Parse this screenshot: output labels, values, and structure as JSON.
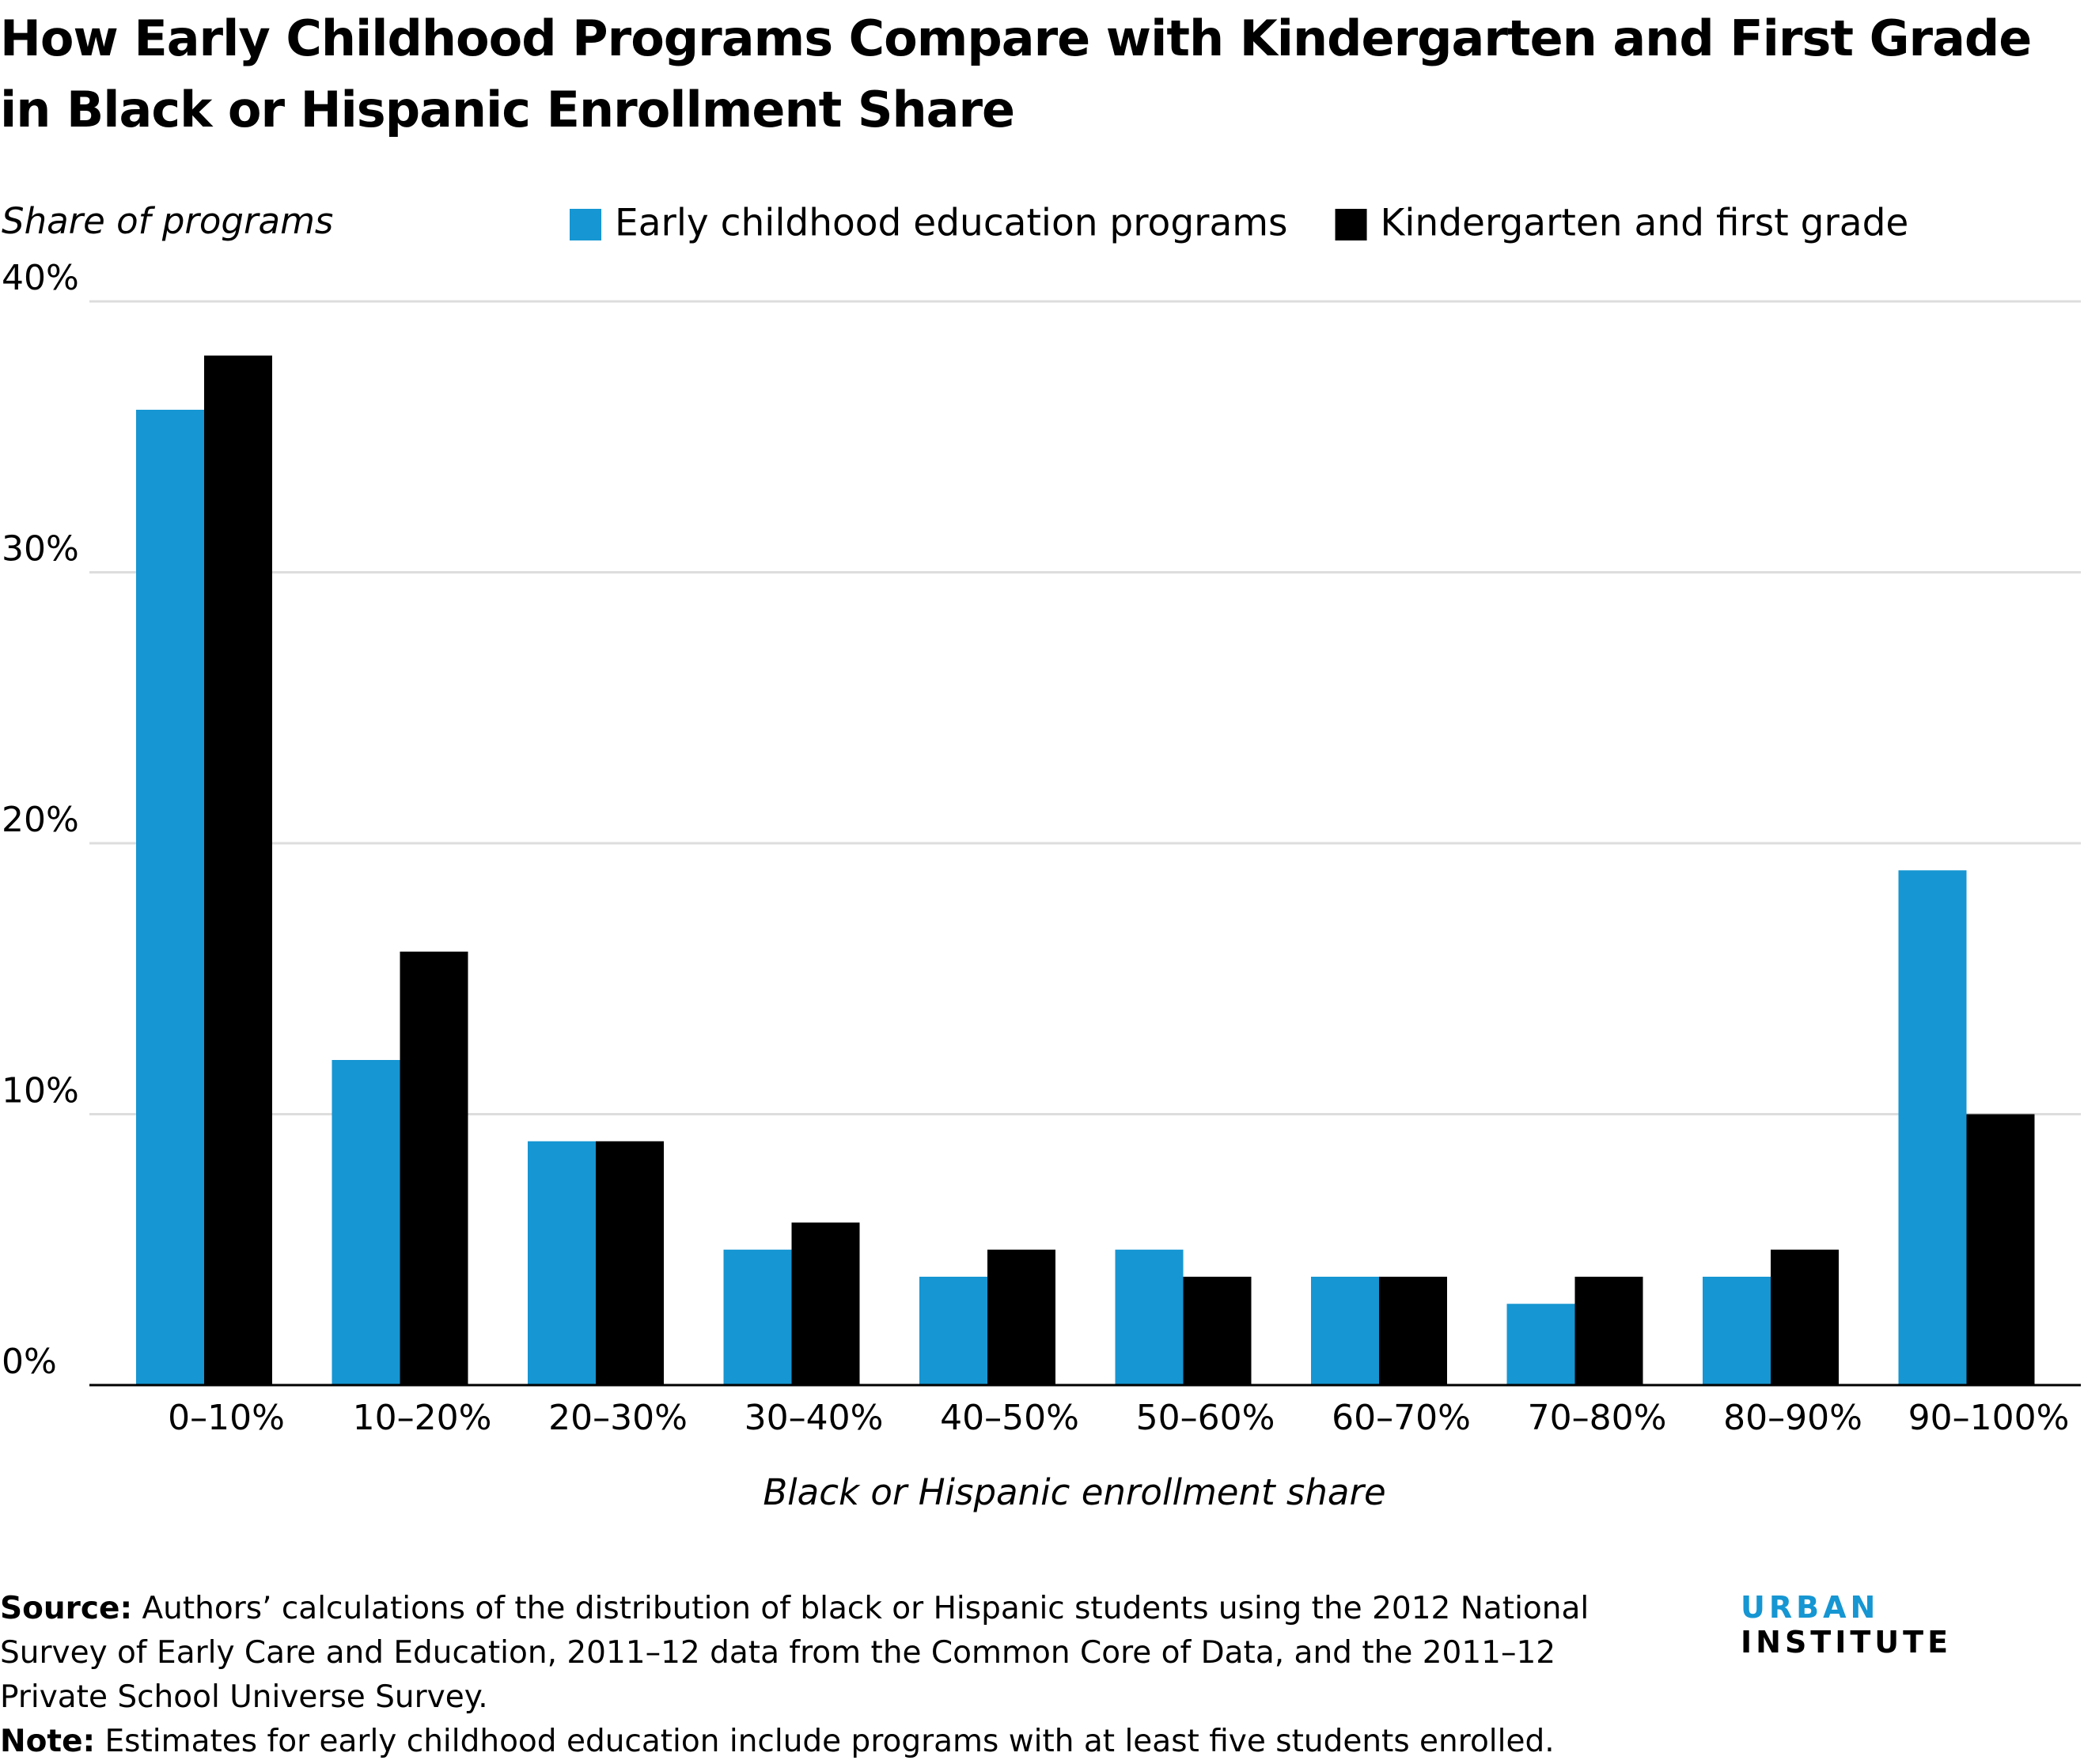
{
  "chart_data": {
    "type": "bar",
    "title": "How Early Childhood Programs Compare with Kindergarten and First Grade in Black or Hispanic Enrollment Share",
    "y_label": "Share of programs",
    "x_label": "Black or Hispanic enrollment share",
    "categories": [
      "0–10%",
      "10–20%",
      "20–30%",
      "30–40%",
      "40–50%",
      "50–60%",
      "60–70%",
      "70–80%",
      "80–90%",
      "90–100%"
    ],
    "series": [
      {
        "name": "Early childhood education programs",
        "color": "#1696d2",
        "values": [
          36,
          12,
          9,
          5,
          4,
          5,
          4,
          3,
          4,
          19
        ]
      },
      {
        "name": "Kindergarten and first grade",
        "color": "#000000",
        "values": [
          38,
          16,
          9,
          6,
          5,
          4,
          4,
          4,
          5,
          10
        ]
      }
    ],
    "ylim": [
      0,
      40
    ],
    "yticks": [
      {
        "value": 0,
        "label": "0%"
      },
      {
        "value": 10,
        "label": "10%"
      },
      {
        "value": 20,
        "label": "20%"
      },
      {
        "value": 30,
        "label": "30%"
      },
      {
        "value": 40,
        "label": "40%"
      }
    ],
    "grid": true
  },
  "footer": {
    "source_label": "Source:",
    "source_text": "Authors’ calculations of the distribution of black or Hispanic students using the 2012 National Survey of Early Care and Education, 2011–12 data from the Common Core of Data, and the 2011–12 Private School Universe Survey.",
    "note_label": "Note:",
    "note_text": "Estimates for early childhood education include programs with at least five students enrolled.",
    "logo_first": "URBAN",
    "logo_second": "INSTITUTE"
  }
}
